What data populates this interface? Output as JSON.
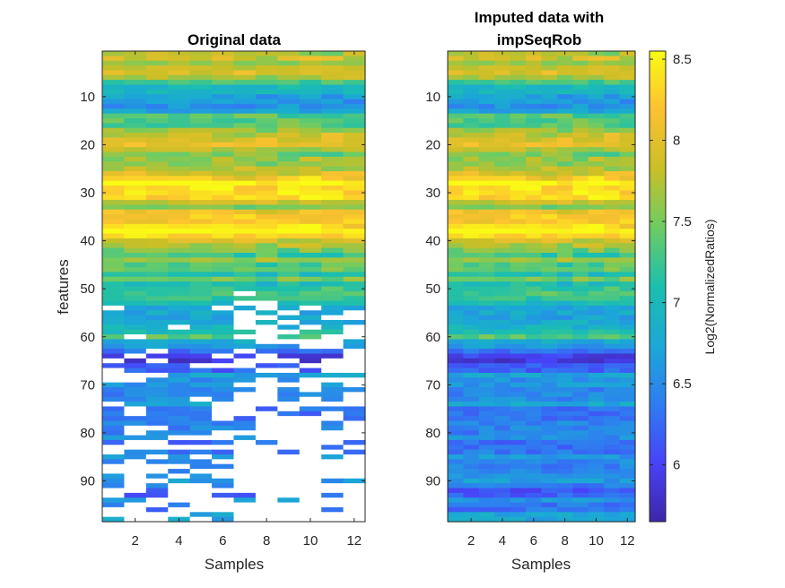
{
  "chart_data": [
    {
      "type": "heatmap",
      "title": "Original data",
      "xlabel": "Samples",
      "ylabel": "features",
      "x_ticks": [
        2,
        4,
        6,
        8,
        10,
        12
      ],
      "y_ticks": [
        10,
        20,
        30,
        40,
        50,
        60,
        70,
        80,
        90
      ],
      "xlim": [
        0.5,
        12.5
      ],
      "ylim": [
        0.5,
        98.5
      ],
      "n_samples": 12,
      "n_features": 98,
      "missing_shown_as": "white"
    },
    {
      "type": "heatmap",
      "title_lines": [
        "Imputed data with",
        "impSeqRob"
      ],
      "xlabel": "Samples",
      "x_ticks": [
        2,
        4,
        6,
        8,
        10,
        12
      ],
      "y_ticks": [
        10,
        20,
        30,
        40,
        50,
        60,
        70,
        80,
        90
      ],
      "xlim": [
        0.5,
        12.5
      ],
      "ylim": [
        0.5,
        98.5
      ],
      "n_samples": 12,
      "n_features": 98
    }
  ],
  "colorbar": {
    "label": "Log2(NormalizedRatios)",
    "range": [
      5.65,
      8.55
    ],
    "ticks": [
      "6",
      "6.5",
      "7",
      "7.5",
      "8",
      "8.5"
    ],
    "tick_values": [
      6,
      6.5,
      7,
      7.5,
      8,
      8.5
    ],
    "colormap": "parula"
  },
  "colors": {
    "missing": "#ffffff",
    "axis": "#262626"
  }
}
